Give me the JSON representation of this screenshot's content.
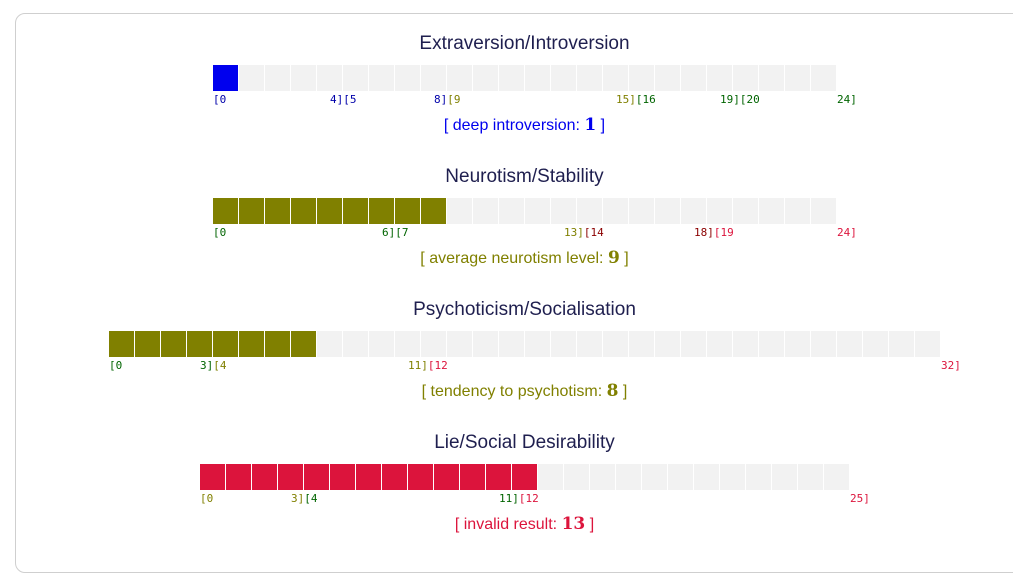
{
  "scales": [
    {
      "title": "Extraversion/Introversion",
      "max": 24,
      "value": 1,
      "fill_color": "#0000ee",
      "ticks": [
        {
          "text": "[0",
          "value": 0,
          "color": "#0000aa"
        },
        {
          "text": "4][5",
          "value": 4.5,
          "color": "#0000aa"
        },
        {
          "text": "8][9",
          "value": 8.5,
          "color": "#0000aa",
          "split_color": "#808000"
        },
        {
          "text": "15][16",
          "value": 15.5,
          "color": "#808000",
          "split_color": "#006400"
        },
        {
          "text": "19][20",
          "value": 19.5,
          "color": "#006400"
        },
        {
          "text": "24]",
          "value": 24,
          "color": "#006400"
        }
      ],
      "result_label": "deep introversion",
      "result_value": "1",
      "result_color": "#0000ee"
    },
    {
      "title": "Neurotism/Stability",
      "max": 24,
      "value": 9,
      "fill_color": "#808000",
      "ticks": [
        {
          "text": "[0",
          "value": 0,
          "color": "#006400"
        },
        {
          "text": "6][7",
          "value": 6.5,
          "color": "#006400"
        },
        {
          "text": "13][14",
          "value": 13.5,
          "color": "#808000",
          "split_color": "#8b0000"
        },
        {
          "text": "18][19",
          "value": 18.5,
          "color": "#8b0000",
          "split_color": "#dc143c"
        },
        {
          "text": "24]",
          "value": 24,
          "color": "#dc143c"
        }
      ],
      "result_label": "average neurotism level",
      "result_value": "9",
      "result_color": "#808000"
    },
    {
      "title": "Psychoticism/Socialisation",
      "max": 32,
      "value": 8,
      "fill_color": "#808000",
      "ticks": [
        {
          "text": "[0",
          "value": 0,
          "color": "#006400"
        },
        {
          "text": "3][4",
          "value": 3.5,
          "color": "#006400",
          "split_color": "#808000"
        },
        {
          "text": "11][12",
          "value": 11.5,
          "color": "#808000",
          "split_color": "#dc143c"
        },
        {
          "text": "32]",
          "value": 32,
          "color": "#dc143c"
        }
      ],
      "result_label": "tendency to psychotism",
      "result_value": "8",
      "result_color": "#808000"
    },
    {
      "title": "Lie/Social Desirability",
      "max": 25,
      "value": 13,
      "fill_color": "#dc143c",
      "ticks": [
        {
          "text": "[0",
          "value": 0,
          "color": "#808000"
        },
        {
          "text": "3][4",
          "value": 3.5,
          "color": "#808000",
          "split_color": "#006400"
        },
        {
          "text": "11][12",
          "value": 11.5,
          "color": "#006400",
          "split_color": "#dc143c"
        },
        {
          "text": "25]",
          "value": 25,
          "color": "#dc143c"
        }
      ],
      "result_label": "invalid result",
      "result_value": "13",
      "result_color": "#dc143c"
    }
  ]
}
